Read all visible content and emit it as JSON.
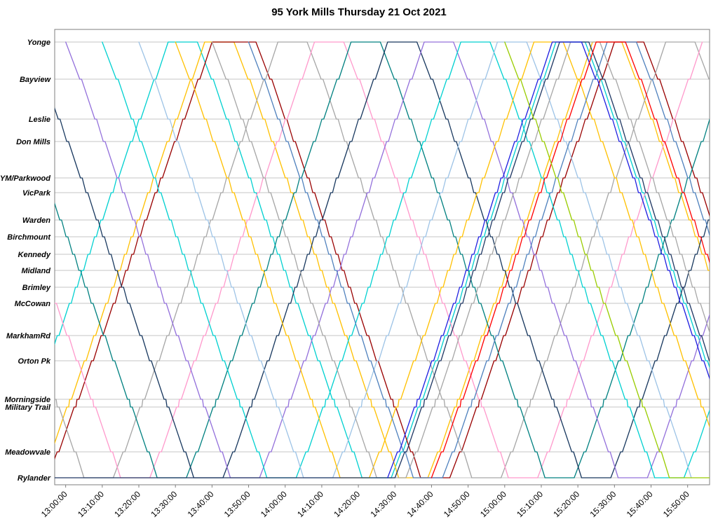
{
  "title": "95 York Mills Thursday 21 Oct 2021",
  "chart_data": {
    "type": "line",
    "title": "95 York Mills Thursday 21 Oct 2021",
    "description": "Time-distance (Marey) diagram of bus trips on route 95 York Mills; x axis is time of day, y axis is position along the route from Yonge (top) to Rylander (bottom). Each colored polyline is one vehicle; flat segments are terminal layovers; points are [minutes after 13:00, distance units along route].",
    "grid": "horizontal lines at each station, no vertical gridlines",
    "legend_position": "none",
    "x_axis": {
      "range_minutes": [
        -3,
        176
      ],
      "tick_minutes": [
        0,
        10,
        20,
        30,
        40,
        50,
        60,
        70,
        80,
        90,
        100,
        110,
        120,
        130,
        140,
        150,
        160,
        170
      ],
      "tick_labels": [
        "13:00:00",
        "13:10:00",
        "13:20:00",
        "13:30:00",
        "13:40:00",
        "13:50:00",
        "14:00:00",
        "14:10:00",
        "14:20:00",
        "14:30:00",
        "14:40:00",
        "14:50:00",
        "15:00:00",
        "15:10:00",
        "15:20:00",
        "15:30:00",
        "15:40:00",
        "15:50:00"
      ]
    },
    "y_axis": {
      "max_dist": 622,
      "stations": [
        {
          "name": "Yonge",
          "dist": 0
        },
        {
          "name": "Bayview",
          "dist": 53
        },
        {
          "name": "Leslie",
          "dist": 110
        },
        {
          "name": "Don Mills",
          "dist": 142
        },
        {
          "name": "YM/Parkwood",
          "dist": 194
        },
        {
          "name": "VicPark",
          "dist": 215
        },
        {
          "name": "Warden",
          "dist": 254
        },
        {
          "name": "Birchmount",
          "dist": 278
        },
        {
          "name": "Kennedy",
          "dist": 303
        },
        {
          "name": "Midland",
          "dist": 326
        },
        {
          "name": "Brimley",
          "dist": 350
        },
        {
          "name": "McCowan",
          "dist": 373
        },
        {
          "name": "MarkhamRd",
          "dist": 419
        },
        {
          "name": "Orton Pk",
          "dist": 455
        },
        {
          "name": "Morningside",
          "dist": 510
        },
        {
          "name": "Military Trail",
          "dist": 521
        },
        {
          "name": "Meadowvale",
          "dist": 585
        },
        {
          "name": "Rylander",
          "dist": 622
        }
      ]
    },
    "station_dwell_minutes": 0.5,
    "series": [
      {
        "name": "trip-cyan-a",
        "color": "#00D0D0",
        "points": [
          [
            -17,
            622
          ],
          [
            28,
            0
          ],
          [
            36,
            0
          ],
          [
            81,
            622
          ],
          [
            89,
            622
          ],
          [
            134,
            0
          ],
          [
            142,
            0
          ],
          [
            187,
            622
          ]
        ]
      },
      {
        "name": "trip-gold-a",
        "color": "#FFC000",
        "points": [
          [
            -7,
            622
          ],
          [
            38,
            0
          ],
          [
            46,
            0
          ],
          [
            91,
            622
          ],
          [
            99,
            622
          ],
          [
            144,
            0
          ],
          [
            152,
            0
          ],
          [
            197,
            622
          ]
        ]
      },
      {
        "name": "trip-darkred",
        "color": "#990000",
        "points": [
          [
            -5,
            622
          ],
          [
            40,
            0
          ],
          [
            52,
            0
          ],
          [
            97,
            622
          ],
          [
            105,
            622
          ],
          [
            150,
            0
          ],
          [
            158,
            0
          ],
          [
            203,
            622
          ]
        ]
      },
      {
        "name": "trip-gray-a",
        "color": "#A6A6A6",
        "points": [
          [
            -40,
            0
          ],
          [
            5,
            622
          ],
          [
            13,
            622
          ],
          [
            58,
            0
          ],
          [
            66,
            0
          ],
          [
            111,
            622
          ],
          [
            119,
            622
          ],
          [
            164,
            0
          ],
          [
            172,
            0
          ],
          [
            217,
            622
          ]
        ]
      },
      {
        "name": "trip-pink",
        "color": "#FF99CC",
        "points": [
          [
            -30,
            0
          ],
          [
            15,
            622
          ],
          [
            23,
            622
          ],
          [
            68,
            0
          ],
          [
            76,
            0
          ],
          [
            121,
            622
          ],
          [
            129,
            622
          ],
          [
            174,
            0
          ]
        ]
      },
      {
        "name": "trip-teal",
        "color": "#008080",
        "points": [
          [
            -20,
            0
          ],
          [
            25,
            622
          ],
          [
            33,
            622
          ],
          [
            78,
            0
          ],
          [
            86,
            0
          ],
          [
            131,
            622
          ],
          [
            139,
            622
          ],
          [
            184,
            0
          ]
        ]
      },
      {
        "name": "trip-navy-a",
        "color": "#17375E",
        "points": [
          [
            -10,
            0
          ],
          [
            35,
            622
          ],
          [
            43,
            622
          ],
          [
            88,
            0
          ],
          [
            96,
            0
          ],
          [
            141,
            622
          ],
          [
            149,
            622
          ],
          [
            194,
            0
          ]
        ]
      },
      {
        "name": "trip-purple",
        "color": "#9370DB",
        "points": [
          [
            0,
            0
          ],
          [
            45,
            622
          ],
          [
            53,
            622
          ],
          [
            98,
            0
          ],
          [
            106,
            0
          ],
          [
            151,
            622
          ],
          [
            159,
            622
          ],
          [
            204,
            0
          ]
        ]
      },
      {
        "name": "trip-cyan-b",
        "color": "#00D0D0",
        "points": [
          [
            10,
            0
          ],
          [
            55,
            622
          ],
          [
            63,
            622
          ],
          [
            108,
            0
          ],
          [
            116,
            0
          ],
          [
            161,
            622
          ],
          [
            169,
            622
          ],
          [
            214,
            0
          ]
        ]
      },
      {
        "name": "trip-lightblue",
        "color": "#9DC3E6",
        "points": [
          [
            20,
            0
          ],
          [
            65,
            622
          ],
          [
            73,
            622
          ],
          [
            118,
            0
          ],
          [
            126,
            0
          ],
          [
            171,
            622
          ]
        ]
      },
      {
        "name": "trip-gold-b",
        "color": "#FFC000",
        "points": [
          [
            30,
            0
          ],
          [
            75,
            622
          ],
          [
            83,
            622
          ],
          [
            128,
            0
          ],
          [
            136,
            0
          ],
          [
            181,
            622
          ]
        ]
      },
      {
        "name": "trip-gray-b",
        "color": "#A6A6A6",
        "points": [
          [
            40,
            0
          ],
          [
            85,
            622
          ],
          [
            93,
            622
          ],
          [
            138,
            0
          ],
          [
            146,
            0
          ],
          [
            191,
            622
          ]
        ]
      },
      {
        "name": "trip-steelblue",
        "color": "#4F81BD",
        "points": [
          [
            50,
            0
          ],
          [
            95,
            622
          ],
          [
            103,
            622
          ],
          [
            148,
            0
          ],
          [
            156,
            0
          ],
          [
            201,
            622
          ]
        ]
      },
      {
        "name": "trip-navy-b",
        "color": "#203864",
        "points": [
          [
            -3,
            622
          ],
          [
            90,
            622
          ],
          [
            135,
            0
          ],
          [
            143,
            0
          ],
          [
            188,
            622
          ]
        ]
      },
      {
        "name": "trip-blue",
        "color": "#1F1FE0",
        "points": [
          [
            88,
            622
          ],
          [
            133,
            0
          ],
          [
            141,
            0
          ],
          [
            186,
            622
          ]
        ]
      },
      {
        "name": "trip-red",
        "color": "#FF0000",
        "points": [
          [
            100,
            622
          ],
          [
            145,
            0
          ],
          [
            153,
            0
          ],
          [
            198,
            622
          ]
        ]
      },
      {
        "name": "trip-green",
        "color": "#99CC00",
        "points": [
          [
            120,
            0
          ],
          [
            165,
            622
          ],
          [
            176,
            622
          ]
        ]
      }
    ]
  }
}
